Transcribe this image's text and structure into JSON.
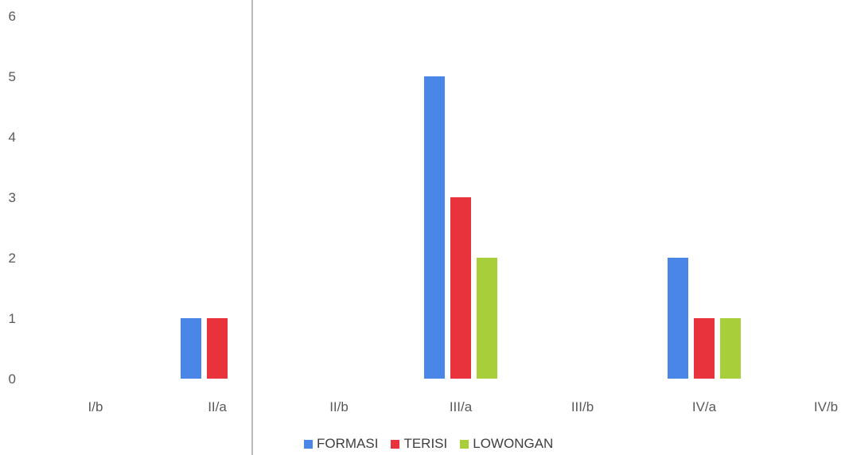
{
  "chart_data": {
    "type": "bar",
    "title": "",
    "xlabel": "",
    "ylabel": "",
    "categories": [
      "I/b",
      "II/a",
      "II/b",
      "III/a",
      "III/b",
      "IV/a",
      "IV/b"
    ],
    "ylim": [
      0,
      6
    ],
    "yticks": [
      0,
      1,
      2,
      3,
      4,
      5,
      6
    ],
    "grid": false,
    "legend_position": "bottom",
    "series": [
      {
        "name": "FORMASI",
        "color": "#4a86e8",
        "values": [
          0,
          1,
          0,
          5,
          0,
          2,
          0
        ]
      },
      {
        "name": "TERISI",
        "color": "#e8323c",
        "values": [
          0,
          1,
          0,
          3,
          0,
          1,
          0
        ]
      },
      {
        "name": "LOWONGAN",
        "color": "#a8cf3a",
        "values": [
          0,
          0,
          0,
          2,
          0,
          1,
          0
        ]
      }
    ]
  },
  "legend": {
    "items": [
      {
        "label": "FORMASI",
        "color": "#4a86e8"
      },
      {
        "label": "TERISI",
        "color": "#e8323c"
      },
      {
        "label": "LOWONGAN",
        "color": "#a8cf3a"
      }
    ]
  }
}
